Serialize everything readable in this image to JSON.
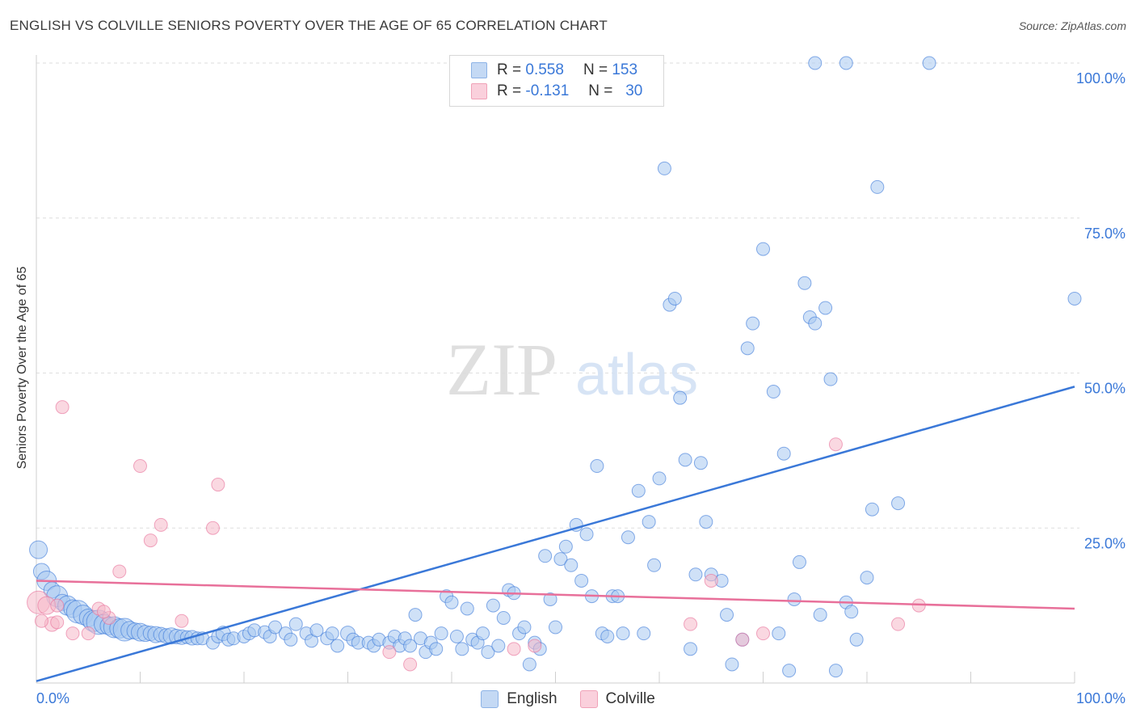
{
  "title": "ENGLISH VS COLVILLE SENIORS POVERTY OVER THE AGE OF 65 CORRELATION CHART",
  "source": "Source: ZipAtlas.com",
  "watermark": {
    "part1": "ZIP",
    "part2": "atlas"
  },
  "legend": {
    "rows": [
      {
        "r_label": "R =",
        "r_value": "0.558",
        "n_label": "N =",
        "n_value": "153",
        "color": "#a8c8f0"
      },
      {
        "r_label": "R =",
        "r_value": "-0.131",
        "n_label": "N =",
        "n_value": "30",
        "color": "#f6b8c8"
      }
    ]
  },
  "bottom_legend": [
    {
      "label": "English",
      "color": "#a8c8f0"
    },
    {
      "label": "Colville",
      "color": "#f6b8c8"
    }
  ],
  "chart_data": {
    "type": "scatter",
    "title": "ENGLISH VS COLVILLE SENIORS POVERTY OVER THE AGE OF 65 CORRELATION CHART",
    "xlabel": "",
    "ylabel": "Seniors Poverty Over the Age of 65",
    "xlim": [
      0,
      100
    ],
    "ylim": [
      0,
      100
    ],
    "x_tick_labels": [
      "0.0%",
      "100.0%"
    ],
    "y_tick_labels": [
      {
        "value": 25,
        "label": "25.0%"
      },
      {
        "value": 50,
        "label": "50.0%"
      },
      {
        "value": 75,
        "label": "75.0%"
      },
      {
        "value": 100,
        "label": "100.0%"
      }
    ],
    "grid": true,
    "series": [
      {
        "name": "English",
        "color": "#3a78d8",
        "fill": "#a8c8f0",
        "trend": {
          "x": [
            0,
            100
          ],
          "y": [
            0.3,
            47.8
          ]
        },
        "points": [
          [
            0.2,
            21.5,
            22
          ],
          [
            0.5,
            18,
            20
          ],
          [
            1,
            16.5,
            24
          ],
          [
            1.5,
            15,
            20
          ],
          [
            2,
            14,
            26
          ],
          [
            2.5,
            13,
            20
          ],
          [
            3,
            12.5,
            24
          ],
          [
            3.5,
            12,
            22
          ],
          [
            4,
            11.5,
            28
          ],
          [
            4.5,
            11,
            24
          ],
          [
            5,
            10.5,
            22
          ],
          [
            5.5,
            10,
            26
          ],
          [
            6,
            9.8,
            30
          ],
          [
            6.5,
            9.5,
            24
          ],
          [
            7,
            9.2,
            22
          ],
          [
            7.5,
            9,
            26
          ],
          [
            8,
            8.8,
            24
          ],
          [
            8.5,
            8.6,
            28
          ],
          [
            9,
            8.5,
            22
          ],
          [
            9.5,
            8.4,
            20
          ],
          [
            10,
            8.2,
            22
          ],
          [
            10.5,
            8,
            20
          ],
          [
            11,
            8,
            18
          ],
          [
            11.5,
            7.8,
            20
          ],
          [
            12,
            7.8,
            18
          ],
          [
            12.5,
            7.6,
            18
          ],
          [
            13,
            7.6,
            20
          ],
          [
            13.5,
            7.5,
            18
          ],
          [
            14,
            7.4,
            18
          ],
          [
            14.5,
            7.4,
            16
          ],
          [
            15,
            7.3,
            18
          ],
          [
            15.5,
            7.2,
            16
          ],
          [
            16,
            7.2,
            16
          ],
          [
            17,
            6.5,
            16
          ],
          [
            17.5,
            7.5,
            16
          ],
          [
            18,
            8,
            18
          ],
          [
            18.5,
            7,
            16
          ],
          [
            19,
            7.2,
            16
          ],
          [
            20,
            7.5,
            16
          ],
          [
            20.5,
            8,
            16
          ],
          [
            21,
            8.5,
            16
          ],
          [
            22,
            8.2,
            16
          ],
          [
            22.5,
            7.5,
            16
          ],
          [
            23,
            9,
            16
          ],
          [
            24,
            8,
            16
          ],
          [
            24.5,
            7,
            16
          ],
          [
            25,
            9.5,
            16
          ],
          [
            26,
            8,
            16
          ],
          [
            26.5,
            6.8,
            16
          ],
          [
            27,
            8.5,
            16
          ],
          [
            28,
            7.2,
            16
          ],
          [
            28.5,
            8,
            16
          ],
          [
            29,
            6,
            16
          ],
          [
            30,
            8,
            18
          ],
          [
            30.5,
            7,
            16
          ],
          [
            31,
            6.5,
            16
          ],
          [
            32,
            6.5,
            16
          ],
          [
            32.5,
            6,
            16
          ],
          [
            33,
            7,
            16
          ],
          [
            34,
            6.5,
            16
          ],
          [
            34.5,
            7.5,
            16
          ],
          [
            35,
            6,
            16
          ],
          [
            35.5,
            7.2,
            16
          ],
          [
            36,
            6,
            16
          ],
          [
            36.5,
            11,
            16
          ],
          [
            37,
            7.2,
            16
          ],
          [
            37.5,
            5,
            16
          ],
          [
            38,
            6.5,
            16
          ],
          [
            38.5,
            5.5,
            16
          ],
          [
            39,
            8,
            16
          ],
          [
            39.5,
            14,
            16
          ],
          [
            40,
            13,
            16
          ],
          [
            40.5,
            7.5,
            16
          ],
          [
            41,
            5.5,
            16
          ],
          [
            41.5,
            12,
            16
          ],
          [
            42,
            7,
            16
          ],
          [
            42.5,
            6.5,
            16
          ],
          [
            43,
            8,
            16
          ],
          [
            43.5,
            5,
            16
          ],
          [
            44,
            12.5,
            16
          ],
          [
            44.5,
            6,
            16
          ],
          [
            45,
            10.5,
            16
          ],
          [
            45.5,
            15,
            16
          ],
          [
            46,
            14.5,
            16
          ],
          [
            46.5,
            8,
            16
          ],
          [
            47,
            9,
            16
          ],
          [
            47.5,
            3,
            16
          ],
          [
            48,
            6.5,
            16
          ],
          [
            48.5,
            5.5,
            16
          ],
          [
            49,
            20.5,
            16
          ],
          [
            49.5,
            13.5,
            16
          ],
          [
            50,
            9,
            16
          ],
          [
            50.5,
            20,
            16
          ],
          [
            51,
            22,
            16
          ],
          [
            51.5,
            19,
            16
          ],
          [
            52,
            25.5,
            16
          ],
          [
            52.5,
            16.5,
            16
          ],
          [
            53,
            24,
            16
          ],
          [
            53.5,
            14,
            16
          ],
          [
            54,
            35,
            16
          ],
          [
            54.5,
            8,
            16
          ],
          [
            55,
            7.5,
            16
          ],
          [
            55.5,
            14,
            16
          ],
          [
            56,
            14,
            16
          ],
          [
            56.5,
            8,
            16
          ],
          [
            57,
            23.5,
            16
          ],
          [
            58,
            31,
            16
          ],
          [
            58.5,
            8,
            16
          ],
          [
            59,
            26,
            16
          ],
          [
            59.5,
            19,
            16
          ],
          [
            60,
            33,
            16
          ],
          [
            60.5,
            83,
            16
          ],
          [
            61,
            61,
            16
          ],
          [
            61.5,
            62,
            16
          ],
          [
            62,
            46,
            16
          ],
          [
            62.5,
            36,
            16
          ],
          [
            63,
            5.5,
            16
          ],
          [
            63.5,
            17.5,
            16
          ],
          [
            64,
            35.5,
            16
          ],
          [
            64.5,
            26,
            16
          ],
          [
            65,
            17.5,
            16
          ],
          [
            66,
            16.5,
            16
          ],
          [
            66.5,
            11,
            16
          ],
          [
            67,
            3,
            16
          ],
          [
            68,
            7,
            16
          ],
          [
            68.5,
            54,
            16
          ],
          [
            69,
            58,
            16
          ],
          [
            70,
            70,
            16
          ],
          [
            71,
            47,
            16
          ],
          [
            71.5,
            8,
            16
          ],
          [
            72,
            37,
            16
          ],
          [
            72.5,
            2,
            16
          ],
          [
            73,
            13.5,
            16
          ],
          [
            73.5,
            19.5,
            16
          ],
          [
            74,
            64.5,
            16
          ],
          [
            74.5,
            59,
            16
          ],
          [
            75,
            58,
            16
          ],
          [
            75.5,
            11,
            16
          ],
          [
            76,
            60.5,
            16
          ],
          [
            76.5,
            49,
            16
          ],
          [
            77,
            2,
            16
          ],
          [
            78,
            13,
            16
          ],
          [
            78.5,
            11.5,
            16
          ],
          [
            79,
            7,
            16
          ],
          [
            80,
            17,
            16
          ],
          [
            80.5,
            28,
            16
          ],
          [
            81,
            80,
            16
          ],
          [
            83,
            29,
            16
          ],
          [
            75,
            100,
            16
          ],
          [
            78,
            100,
            16
          ],
          [
            86,
            100,
            16
          ],
          [
            100,
            62,
            16
          ]
        ]
      },
      {
        "name": "Colville",
        "color": "#e8709a",
        "fill": "#f6b8c8",
        "trend": {
          "x": [
            0,
            100
          ],
          "y": [
            16.5,
            12.0
          ]
        },
        "points": [
          [
            0.2,
            13,
            28
          ],
          [
            1,
            12.5,
            22
          ],
          [
            1.5,
            9.5,
            18
          ],
          [
            2,
            12.5,
            16
          ],
          [
            2.5,
            44.5,
            16
          ],
          [
            3.5,
            8,
            16
          ],
          [
            5,
            8,
            16
          ],
          [
            6,
            12,
            16
          ],
          [
            7,
            10.5,
            16
          ],
          [
            8,
            18,
            16
          ],
          [
            10,
            35,
            16
          ],
          [
            11,
            23,
            16
          ],
          [
            12,
            25.5,
            16
          ],
          [
            14,
            10,
            16
          ],
          [
            17,
            25,
            16
          ],
          [
            17.5,
            32,
            16
          ],
          [
            34,
            5,
            16
          ],
          [
            36,
            3,
            16
          ],
          [
            46,
            5.5,
            16
          ],
          [
            48,
            6,
            16
          ],
          [
            63,
            9.5,
            16
          ],
          [
            65,
            16.5,
            16
          ],
          [
            68,
            7,
            16
          ],
          [
            70,
            8,
            16
          ],
          [
            77,
            38.5,
            16
          ],
          [
            83,
            9.5,
            16
          ],
          [
            85,
            12.5,
            16
          ],
          [
            0.5,
            10,
            16
          ],
          [
            2,
            9.8,
            16
          ],
          [
            6.5,
            11.5,
            16
          ]
        ]
      }
    ]
  }
}
